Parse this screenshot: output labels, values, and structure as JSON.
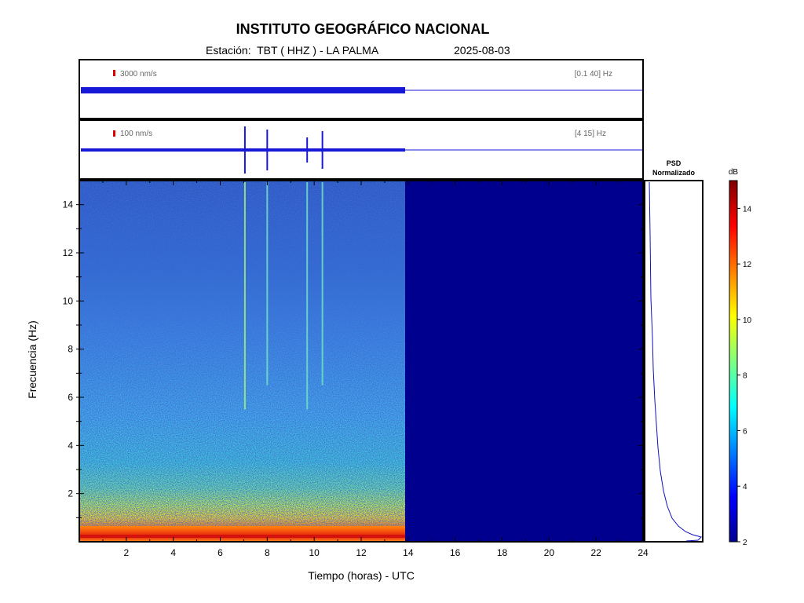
{
  "header": {
    "title": "INSTITUTO GEOGRÁFICO NACIONAL",
    "subtitle": "Estación:  TBT ( HHZ ) - LA PALMA",
    "date": "2025-08-03"
  },
  "traces": [
    {
      "scale_label": "3000 nm/s",
      "band_label": "[0.1 40] Hz"
    },
    {
      "scale_label": "100 nm/s",
      "band_label": "[4 15] Hz",
      "events_hours": [
        7.05,
        8.0,
        9.7,
        10.35
      ]
    }
  ],
  "psd": {
    "title_line1": "PSD",
    "title_line2": "Normalizado"
  },
  "colorbar": {
    "unit": "dB",
    "range": [
      2,
      15
    ],
    "ticks": [
      2,
      4,
      6,
      8,
      10,
      12,
      14
    ]
  },
  "chart_data": {
    "type": "heatmap",
    "xlabel": "Tiempo (horas) - UTC",
    "ylabel": "Frecuencia  (Hz)",
    "xlim": [
      0,
      24
    ],
    "ylim": [
      0,
      15
    ],
    "xticks": [
      2,
      4,
      6,
      8,
      10,
      12,
      14,
      16,
      18,
      20,
      22,
      24
    ],
    "yticks": [
      2,
      4,
      6,
      8,
      10,
      12,
      14
    ],
    "data_end_hour": 13.9,
    "vertical_events_hours": [
      7.05,
      8.0,
      9.7,
      10.35
    ],
    "colormap": "jet",
    "colors": {
      "no_data": "#00008f",
      "trace": "#0000e0",
      "scale_bar": "#dd0000"
    }
  }
}
